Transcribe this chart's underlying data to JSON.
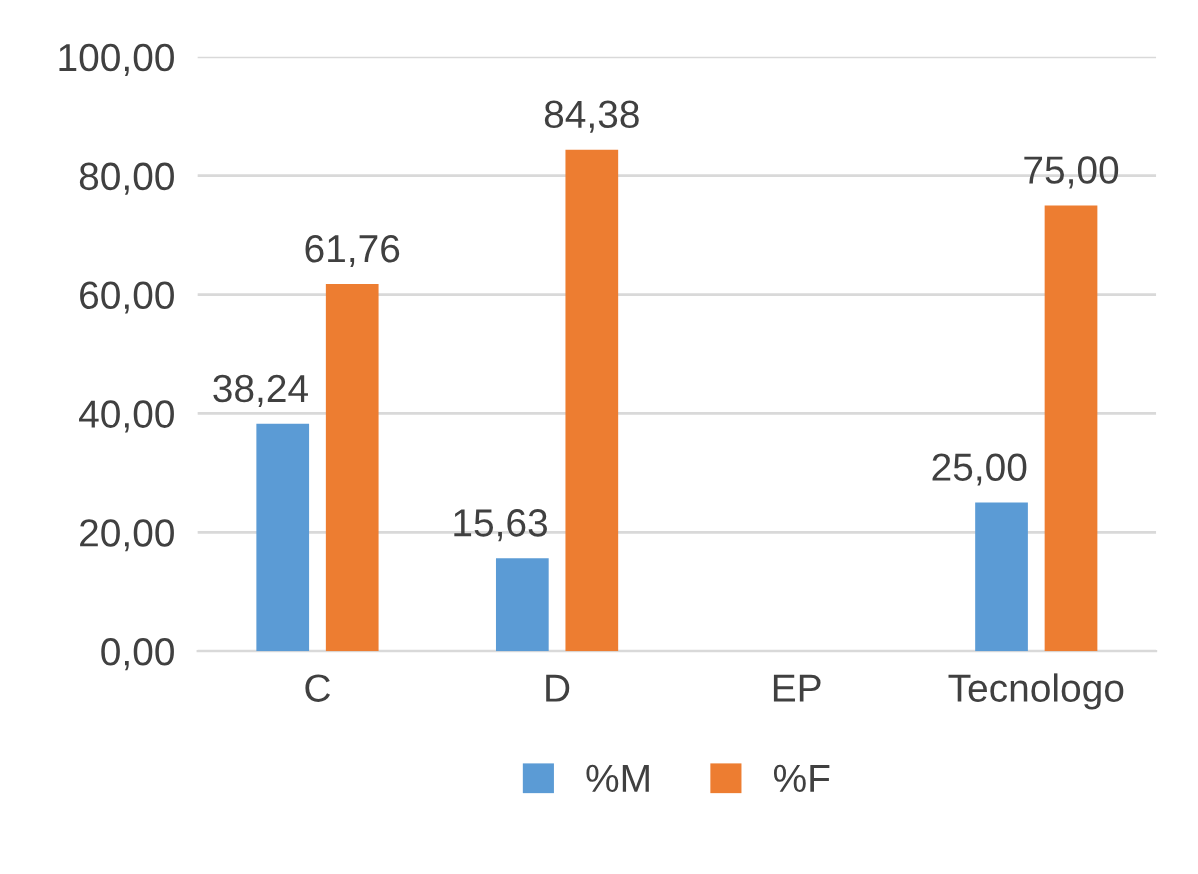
{
  "chart_data": {
    "type": "bar",
    "categories": [
      "C",
      "D",
      "EP",
      "Tecnologo"
    ],
    "series": [
      {
        "name": "%M",
        "color": "#5b9bd5",
        "values": [
          38.24,
          15.63,
          null,
          25.0
        ],
        "value_labels": [
          "38,24",
          "15,63",
          null,
          "25,00"
        ]
      },
      {
        "name": "%F",
        "color": "#ed7d31",
        "values": [
          61.76,
          84.38,
          null,
          75.0
        ],
        "value_labels": [
          "61,76",
          "84,38",
          null,
          "75,00"
        ]
      }
    ],
    "ylim": [
      0,
      100
    ],
    "yticks": [
      {
        "value": 0,
        "label": "0,00"
      },
      {
        "value": 20,
        "label": "20,00"
      },
      {
        "value": 40,
        "label": "40,00"
      },
      {
        "value": 60,
        "label": "60,00"
      },
      {
        "value": 80,
        "label": "80,00"
      },
      {
        "value": 100,
        "label": "100,00"
      }
    ],
    "grid": "y",
    "legend": "bottom"
  }
}
